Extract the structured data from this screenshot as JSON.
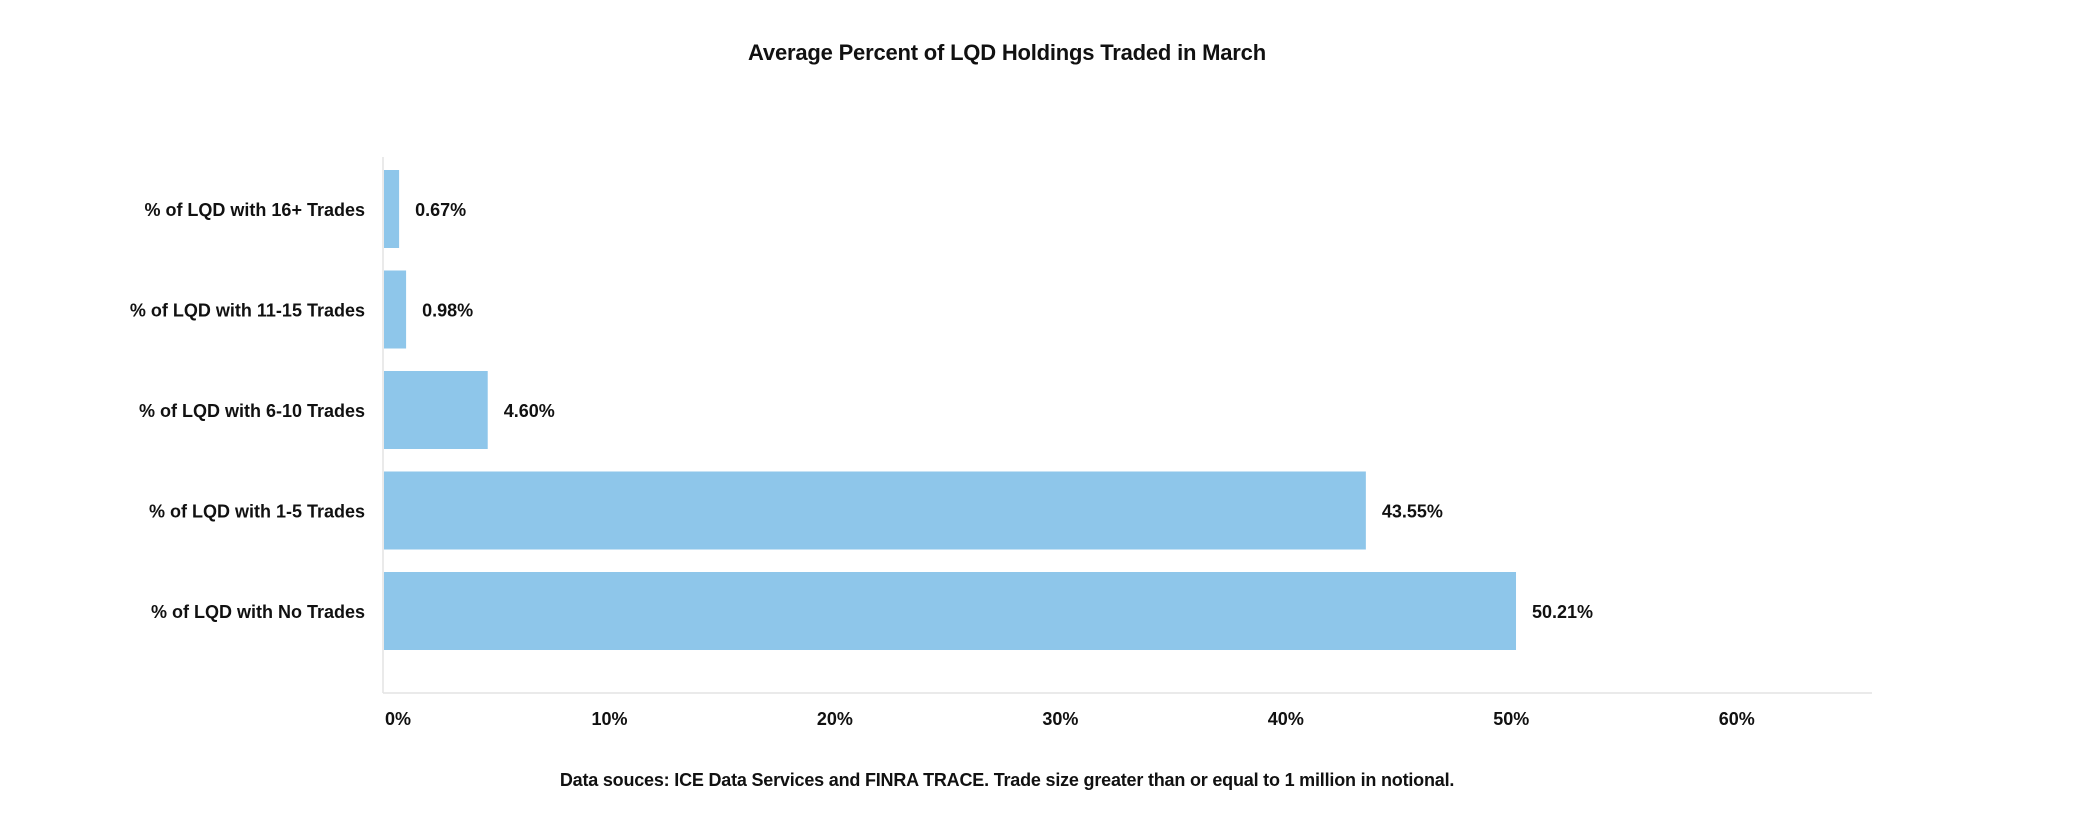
{
  "chart_data": {
    "type": "bar",
    "orientation": "horizontal",
    "title": "Average Percent of LQD Holdings Traded in March",
    "footnote": "Data souces: ICE Data Services and FINRA TRACE. Trade size greater than or equal to 1 million in notional.",
    "categories": [
      "% of LQD with 16+ Trades",
      "% of LQD with 11-15 Trades",
      "% of LQD with 6-10 Trades",
      "% of LQD with 1-5 Trades",
      "% of LQD with No Trades"
    ],
    "values": [
      0.67,
      0.98,
      4.6,
      43.55,
      50.21
    ],
    "value_labels": [
      "0.67%",
      "0.98%",
      "4.60%",
      "43.55%",
      "50.21%"
    ],
    "xlim": [
      0,
      66
    ],
    "xticks": [
      0,
      10,
      20,
      30,
      40,
      50,
      60
    ],
    "xtick_labels": [
      "0%",
      "10%",
      "20%",
      "30%",
      "40%",
      "50%",
      "60%"
    ],
    "xlabel": "",
    "ylabel": "",
    "grid": false,
    "legend": "none",
    "bar_color": "#8ec6ea",
    "axis_color": "#e3e3e3"
  }
}
